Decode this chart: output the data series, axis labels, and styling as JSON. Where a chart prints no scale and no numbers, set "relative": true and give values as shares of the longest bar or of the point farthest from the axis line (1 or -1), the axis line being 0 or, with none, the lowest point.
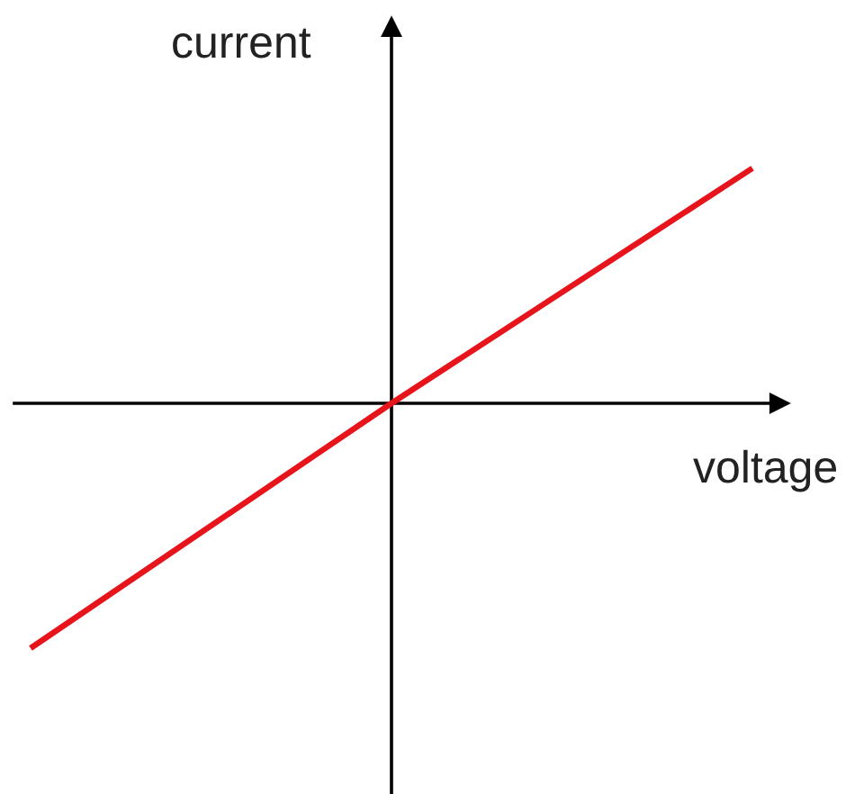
{
  "chart_data": {
    "type": "line",
    "relative": true,
    "xlabel": "voltage",
    "ylabel": "current",
    "categories": [
      null,
      null,
      null
    ],
    "series": [
      {
        "color": "#e8141c",
        "values": [
          -1,
          0,
          0.96
        ]
      }
    ],
    "marker": "none",
    "line_style": "solid"
  }
}
